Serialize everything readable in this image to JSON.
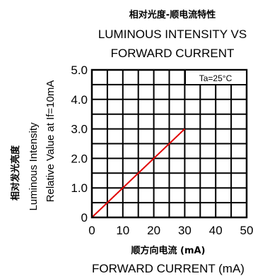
{
  "chart_data": {
    "type": "line",
    "title_cn": "相对光度-顺电流特性",
    "title_en_line1": "LUMINOUS INTENSITY VS",
    "title_en_line2": "FORWARD CURRENT",
    "xlabel_cn": "顺方向电流 (mA)",
    "xlabel_en": "FORWARD CURRENT (mA)",
    "ylabel_cn": "相对发光亮度",
    "ylabel_en1": "Luminous Intensity",
    "ylabel_en2": "Relative Value at If=10mA",
    "annotation": "Ta=25°C",
    "xlim": [
      0,
      50
    ],
    "ylim": [
      0,
      5.0
    ],
    "x_ticks": [
      "0",
      "10",
      "20",
      "30",
      "40",
      "50"
    ],
    "y_ticks": [
      "0",
      "1.0",
      "2.0",
      "3.0",
      "4.0",
      "5.0"
    ],
    "grid": true,
    "line_color": "#e00000",
    "series": [
      {
        "x": [
          0,
          30
        ],
        "y": [
          0,
          3.0
        ]
      }
    ]
  }
}
